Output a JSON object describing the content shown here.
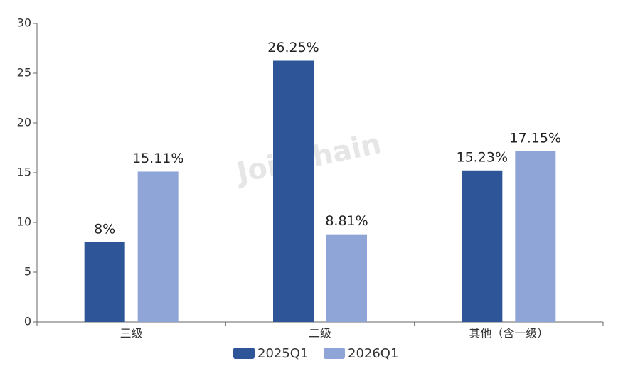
{
  "chart_data": {
    "type": "bar",
    "watermark": "Joinchain",
    "categories": [
      "三级",
      "二级",
      "其他（含一级）"
    ],
    "series": [
      {
        "name": "2025Q1",
        "color": "#2e5597",
        "values": [
          8,
          26.25,
          15.23
        ],
        "value_labels": [
          "8%",
          "26.25%",
          "15.23%"
        ]
      },
      {
        "name": "2026Q1",
        "color": "#8fa5d8",
        "values": [
          15.11,
          8.81,
          17.15
        ],
        "value_labels": [
          "15.11%",
          "8.81%",
          "17.15%"
        ]
      }
    ],
    "ylim": [
      0,
      30
    ],
    "yticks": [
      0,
      5,
      10,
      15,
      20,
      25,
      30
    ],
    "grid": false,
    "legend": "bottom"
  }
}
